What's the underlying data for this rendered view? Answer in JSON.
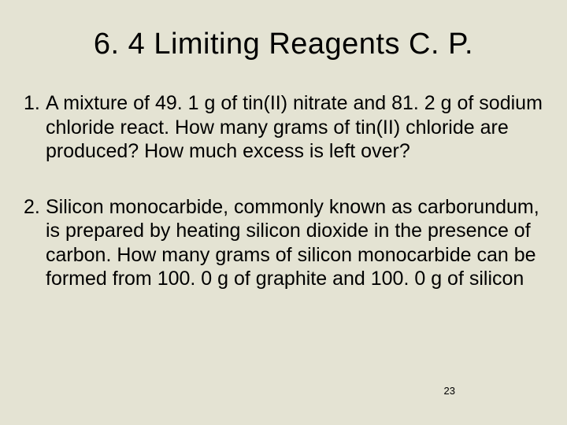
{
  "background_color": "#e4e3d3",
  "text_color": "#000000",
  "font_family": "Arial, Helvetica, sans-serif",
  "title": {
    "text": "6. 4 Limiting Reagents C. P.",
    "fontsize": 38
  },
  "items": [
    {
      "number": "1.",
      "text": "A mixture of 49. 1 g of tin(II) nitrate and 81. 2 g of sodium chloride react.  How many grams of tin(II) chloride are produced? How much excess is left over?"
    },
    {
      "number": "2.",
      "text": "Silicon monocarbide, commonly known as carborundum, is prepared by heating silicon dioxide in the presence of carbon.  How many grams of silicon monocarbide can be formed from 100. 0 g of graphite and 100. 0 g of silicon"
    }
  ],
  "body_fontsize": 25,
  "page_number": "23"
}
